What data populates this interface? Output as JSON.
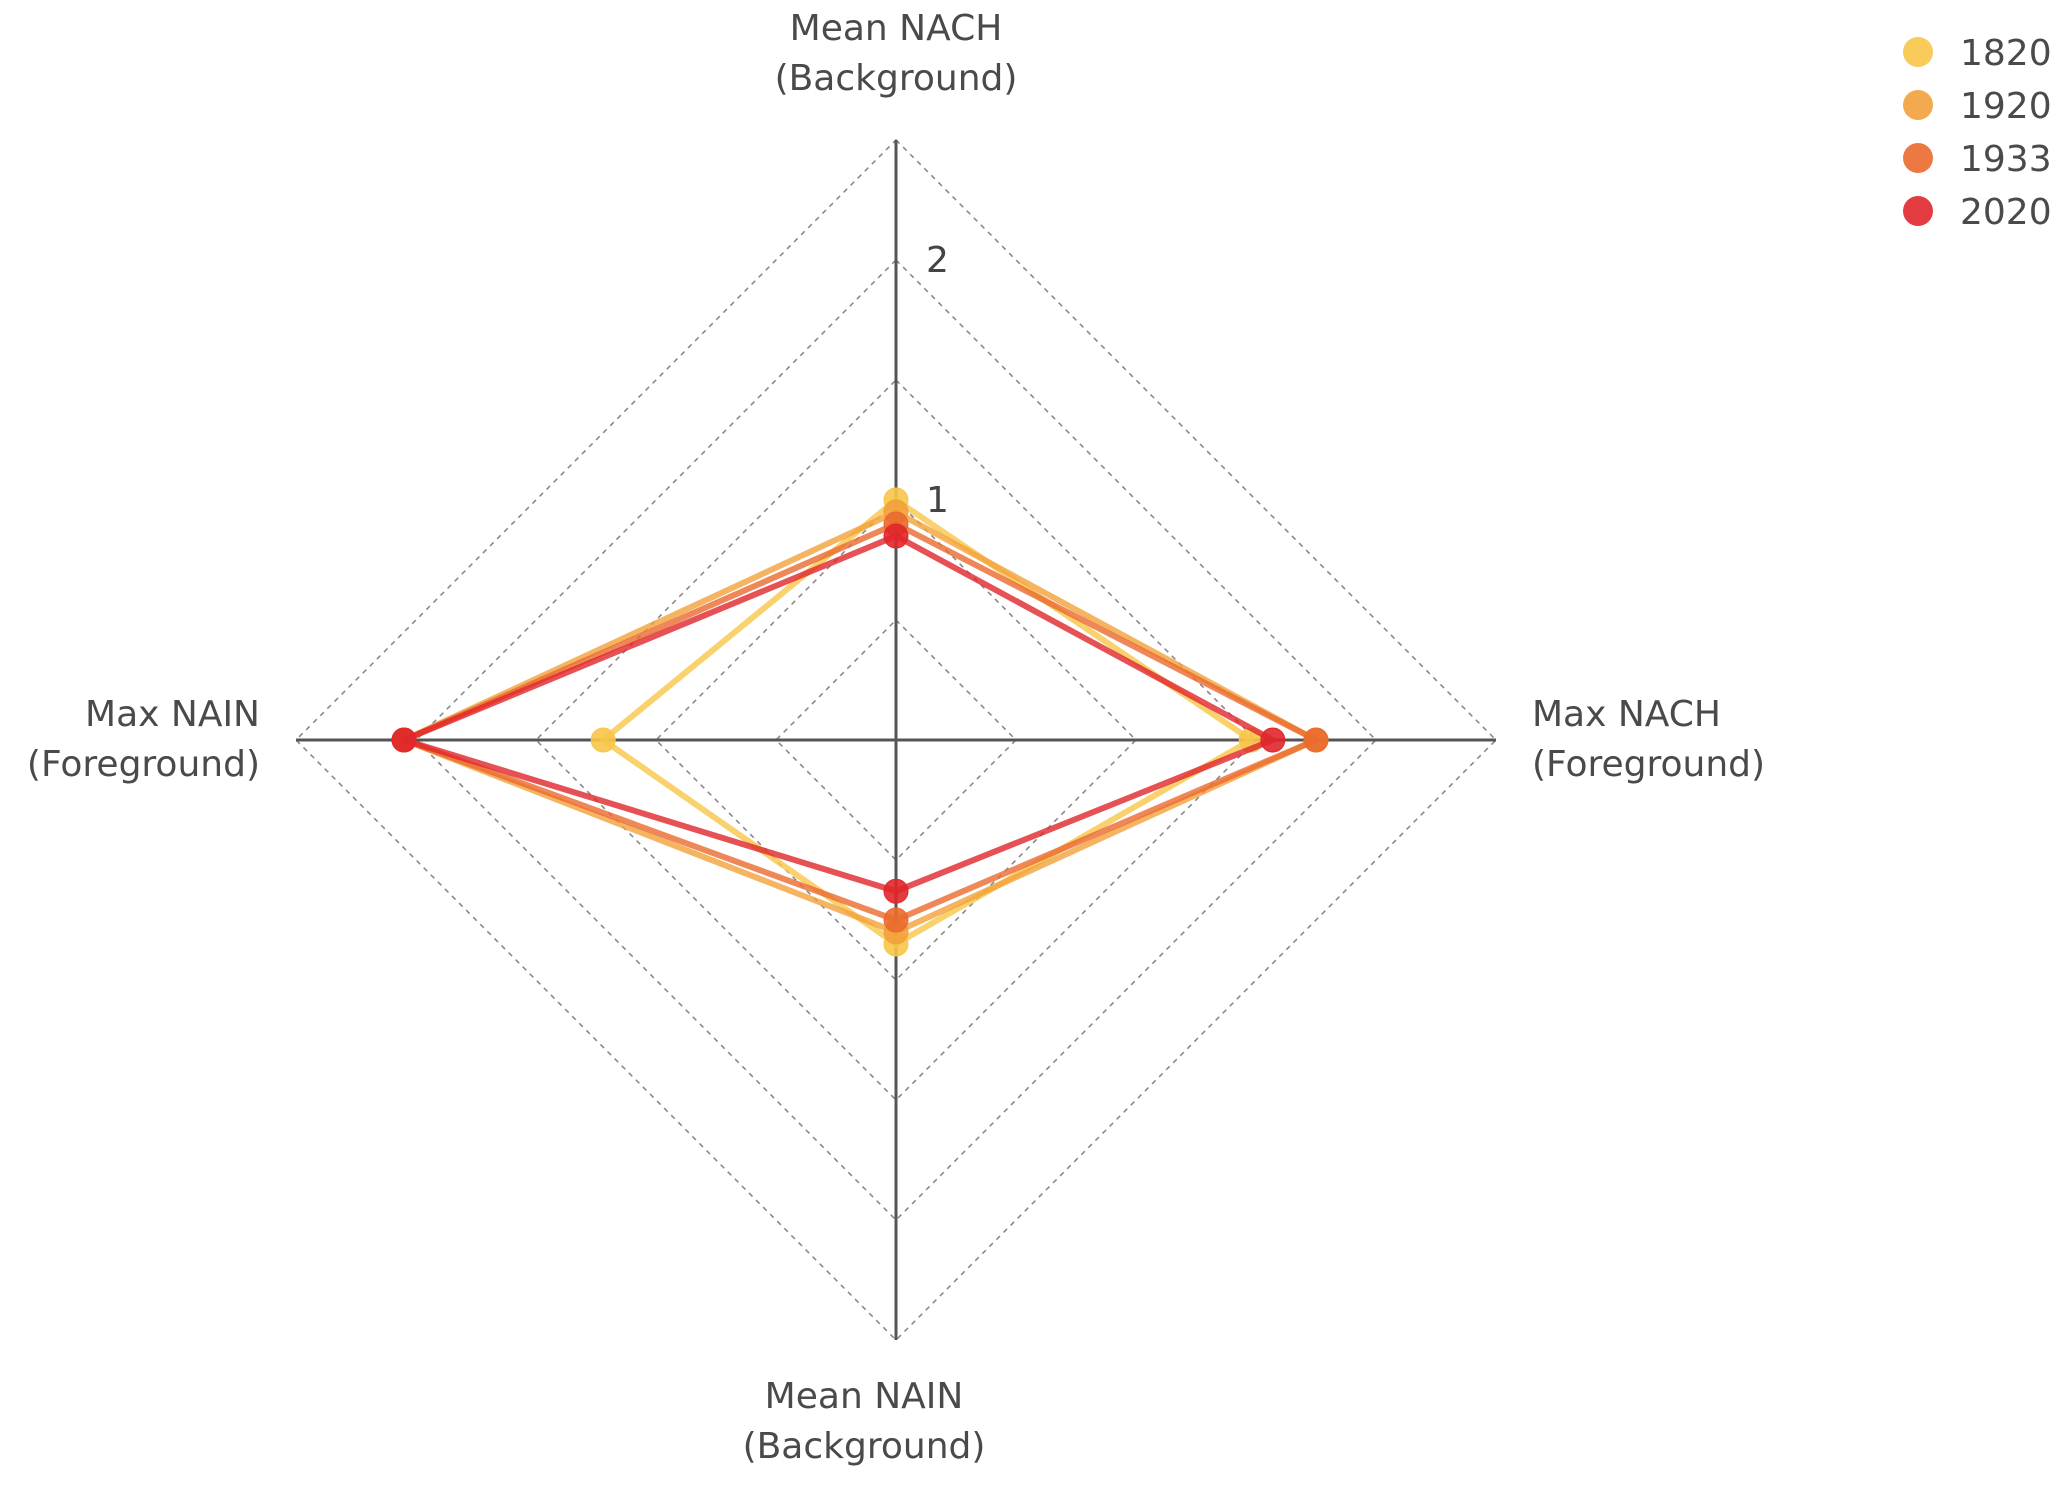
{
  "chart_data": {
    "type": "radar",
    "axes": [
      "Mean NACH (Background)",
      "Max NACH (Foreground)",
      "Mean NAIN (Background)",
      "Max NAIN (Foreground)"
    ],
    "axis_label_lines": [
      [
        "Mean NACH",
        "(Background)"
      ],
      [
        "Max NACH",
        "(Foreground)"
      ],
      [
        "Mean NAIN",
        "(Background)"
      ],
      [
        "Max NAIN",
        "(Foreground)"
      ]
    ],
    "radial_range": [
      0,
      2.5
    ],
    "radial_ticks": [
      1,
      2
    ],
    "radial_tick_labels": [
      "1",
      "2"
    ],
    "grid_levels": [
      0.5,
      1,
      1.5,
      2,
      2.5
    ],
    "grid": true,
    "legend_position": "top-right",
    "series": [
      {
        "name": "1820",
        "color": "#F7C548",
        "values": [
          1.0,
          1.48,
          0.85,
          1.22
        ]
      },
      {
        "name": "1920",
        "color": "#F2A13B",
        "values": [
          0.95,
          1.75,
          0.8,
          2.05
        ]
      },
      {
        "name": "1933",
        "color": "#EA6A2E",
        "values": [
          0.9,
          1.75,
          0.75,
          2.05
        ]
      },
      {
        "name": "2020",
        "color": "#E0262A",
        "values": [
          0.85,
          1.57,
          0.63,
          2.05
        ]
      }
    ]
  }
}
